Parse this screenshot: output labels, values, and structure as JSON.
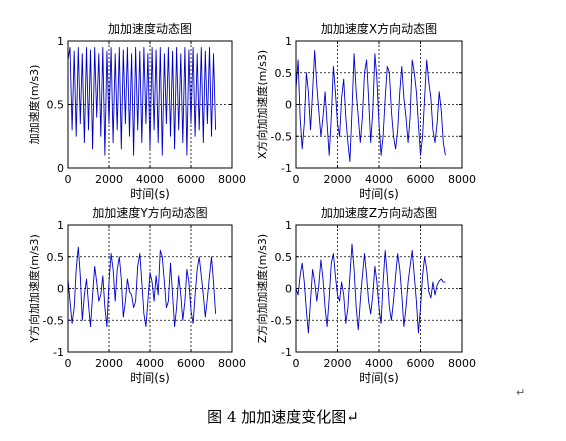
{
  "caption": "图 4  加加速度变化图↵",
  "paragraph_mark": "↵",
  "chart_data": [
    {
      "type": "line",
      "title": "加加速度动态图",
      "xlabel": "时间(s)",
      "ylabel": "加加速度(m/s3)",
      "xlim": [
        0,
        8000
      ],
      "ylim": [
        0,
        1
      ],
      "xticks": [
        0,
        2000,
        4000,
        6000,
        8000
      ],
      "yticks": [
        0,
        0.5,
        1
      ],
      "ytick_labels": [
        "0",
        "0.5",
        "1"
      ],
      "grid": "dotted",
      "series_color": "#0000cc",
      "series": [
        {
          "x": [
            0,
            100,
            200,
            300,
            400,
            500,
            600,
            700,
            800,
            900,
            1000,
            1100,
            1200,
            1300,
            1400,
            1500,
            1600,
            1700,
            1800,
            1900,
            2000,
            2100,
            2200,
            2300,
            2400,
            2500,
            2600,
            2700,
            2800,
            2900,
            3000,
            3100,
            3200,
            3300,
            3400,
            3500,
            3600,
            3700,
            3800,
            3900,
            4000,
            4100,
            4200,
            4300,
            4400,
            4500,
            4600,
            4700,
            4800,
            4900,
            5000,
            5100,
            5200,
            5300,
            5400,
            5500,
            5600,
            5700,
            5800,
            5900,
            6000,
            6100,
            6200,
            6300,
            6400,
            6500,
            6600,
            6700,
            6800,
            6900,
            7000,
            7100,
            7200
          ],
          "y": [
            0.85,
            0.95,
            0.3,
            0.92,
            0.25,
            0.95,
            0.35,
            0.9,
            0.2,
            0.95,
            0.3,
            0.93,
            0.15,
            0.95,
            0.4,
            0.9,
            0.25,
            0.95,
            0.1,
            0.92,
            0.35,
            0.95,
            0.2,
            0.9,
            0.3,
            0.95,
            0.15,
            0.93,
            0.35,
            0.95,
            0.25,
            0.9,
            0.1,
            0.95,
            0.3,
            0.92,
            0.2,
            0.95,
            0.35,
            0.9,
            0.15,
            0.95,
            0.3,
            0.93,
            0.2,
            0.95,
            0.1,
            0.9,
            0.35,
            0.95,
            0.25,
            0.92,
            0.15,
            0.95,
            0.3,
            0.9,
            0.2,
            0.95,
            0.1,
            0.93,
            0.35,
            0.95,
            0.25,
            0.9,
            0.3,
            0.95,
            0.2,
            0.92,
            0.35,
            0.95,
            0.25,
            0.9,
            0.3
          ]
        }
      ]
    },
    {
      "type": "line",
      "title": "加加速度X方向动态图",
      "xlabel": "时间(s)",
      "ylabel": "X方向加加速度(m/s3)",
      "xlim": [
        0,
        8000
      ],
      "ylim": [
        -1,
        1
      ],
      "xticks": [
        0,
        2000,
        4000,
        6000,
        8000
      ],
      "yticks": [
        -1,
        -0.5,
        0,
        0.5,
        1
      ],
      "ytick_labels": [
        "-1",
        "-0.5",
        "0",
        "0.5",
        "1"
      ],
      "grid": "dotted",
      "series_color": "#0000cc",
      "series": [
        {
          "x": [
            0,
            100,
            200,
            300,
            400,
            500,
            600,
            700,
            800,
            900,
            1000,
            1100,
            1200,
            1300,
            1400,
            1500,
            1600,
            1700,
            1800,
            1900,
            2000,
            2100,
            2200,
            2300,
            2400,
            2500,
            2600,
            2700,
            2800,
            2900,
            3000,
            3100,
            3200,
            3300,
            3400,
            3500,
            3600,
            3700,
            3800,
            3900,
            4000,
            4100,
            4200,
            4300,
            4400,
            4500,
            4600,
            4700,
            4800,
            4900,
            5000,
            5100,
            5200,
            5300,
            5400,
            5500,
            5600,
            5700,
            5800,
            5900,
            6000,
            6100,
            6200,
            6300,
            6400,
            6500,
            6600,
            6700,
            6800,
            6900,
            7000,
            7100,
            7200
          ],
          "y": [
            0.25,
            0.7,
            -0.2,
            -0.7,
            -0.3,
            0.5,
            0.2,
            -0.4,
            0.2,
            0.85,
            0.3,
            -0.1,
            -0.5,
            -0.2,
            0.2,
            -0.3,
            -0.8,
            -0.2,
            0.6,
            0.2,
            -0.3,
            -0.5,
            0.1,
            0.4,
            -0.2,
            -0.6,
            -0.9,
            -0.1,
            0.8,
            0.2,
            -0.2,
            -0.6,
            -0.2,
            0.5,
            0.7,
            0.1,
            -0.6,
            -0.1,
            0.8,
            0.4,
            -0.3,
            -0.8,
            -0.5,
            0.1,
            0.6,
            0.5,
            -0.1,
            -0.5,
            -0.7,
            -0.4,
            0.2,
            0.6,
            0.1,
            -0.2,
            -0.6,
            -0.2,
            0.7,
            0.5,
            0.2,
            -0.3,
            -0.8,
            -0.5,
            0.1,
            0.7,
            0.35,
            0.1,
            -0.4,
            -0.6,
            -0.3,
            0.2,
            -0.1,
            -0.6,
            -0.8
          ]
        }
      ]
    },
    {
      "type": "line",
      "title": "加加速度Y方向动态图",
      "xlabel": "时间(s)",
      "ylabel": "Y方向加加速度(m/s3)",
      "xlim": [
        0,
        8000
      ],
      "ylim": [
        -1,
        1
      ],
      "xticks": [
        0,
        2000,
        4000,
        6000,
        8000
      ],
      "yticks": [
        -1,
        -0.5,
        0,
        0.5,
        1
      ],
      "ytick_labels": [
        "-1",
        "-0.5",
        "0",
        "0.5",
        "1"
      ],
      "grid": "dotted",
      "series_color": "#0000cc",
      "series": [
        {
          "x": [
            0,
            100,
            200,
            300,
            400,
            500,
            600,
            700,
            800,
            900,
            1000,
            1100,
            1200,
            1300,
            1400,
            1500,
            1600,
            1700,
            1800,
            1900,
            2000,
            2100,
            2200,
            2300,
            2400,
            2500,
            2600,
            2700,
            2800,
            2900,
            3000,
            3100,
            3200,
            3300,
            3400,
            3500,
            3600,
            3700,
            3800,
            3900,
            4000,
            4100,
            4200,
            4300,
            4400,
            4500,
            4600,
            4700,
            4800,
            4900,
            5000,
            5100,
            5200,
            5300,
            5400,
            5500,
            5600,
            5700,
            5800,
            5900,
            6000,
            6100,
            6200,
            6300,
            6400,
            6500,
            6600,
            6700,
            6800,
            6900,
            7000,
            7100,
            7200
          ],
          "y": [
            0.15,
            -0.2,
            -0.55,
            -0.3,
            0.3,
            0.65,
            0.2,
            -0.5,
            -0.1,
            0.15,
            -0.25,
            -0.6,
            -0.1,
            0.35,
            0.1,
            -0.2,
            -0.1,
            0.2,
            -0.3,
            -0.6,
            0.1,
            0.55,
            0.3,
            -0.2,
            0.3,
            0.5,
            0.15,
            -0.45,
            -0.2,
            0.15,
            -0.05,
            -0.1,
            -0.3,
            -0.2,
            0.35,
            0.55,
            0.1,
            -0.4,
            -0.6,
            -0.2,
            0.25,
            0.1,
            -0.2,
            0.2,
            -0.1,
            0.6,
            0.5,
            0.1,
            -0.3,
            -0.2,
            0.4,
            -0.1,
            -0.6,
            -0.3,
            0.2,
            -0.1,
            -0.5,
            -0.2,
            0.3,
            0.1,
            -0.35,
            -0.55,
            -0.1,
            0.3,
            0.5,
            0.2,
            -0.1,
            -0.45,
            -0.15,
            0.2,
            0.5,
            0.1,
            -0.4
          ]
        }
      ]
    },
    {
      "type": "line",
      "title": "加加速度Z方向动态图",
      "xlabel": "时间(s)",
      "ylabel": "Z方向加加速度(m/s3)",
      "xlim": [
        0,
        8000
      ],
      "ylim": [
        -1,
        1
      ],
      "xticks": [
        0,
        2000,
        4000,
        6000,
        8000
      ],
      "yticks": [
        -1,
        -0.5,
        0,
        0.5,
        1
      ],
      "ytick_labels": [
        "-1",
        "-0.5",
        "0",
        "0.5",
        "1"
      ],
      "grid": "dotted",
      "series_color": "#0000cc",
      "series": [
        {
          "x": [
            0,
            100,
            200,
            300,
            400,
            500,
            600,
            700,
            800,
            900,
            1000,
            1100,
            1200,
            1300,
            1400,
            1500,
            1600,
            1700,
            1800,
            1900,
            2000,
            2100,
            2200,
            2300,
            2400,
            2500,
            2600,
            2700,
            2800,
            2900,
            3000,
            3100,
            3200,
            3300,
            3400,
            3500,
            3600,
            3700,
            3800,
            3900,
            4000,
            4100,
            4200,
            4300,
            4400,
            4500,
            4600,
            4700,
            4800,
            4900,
            5000,
            5100,
            5200,
            5300,
            5400,
            5500,
            5600,
            5700,
            5800,
            5900,
            6000,
            6100,
            6200,
            6300,
            6400,
            6500,
            6600,
            6700,
            6800,
            6900,
            7000,
            7100,
            7200
          ],
          "y": [
            0.0,
            -0.1,
            0.2,
            0.4,
            0.1,
            -0.35,
            -0.7,
            -0.2,
            0.3,
            0.1,
            -0.2,
            0.05,
            0.45,
            0.15,
            -0.3,
            -0.6,
            -0.15,
            0.4,
            0.55,
            0.2,
            -0.1,
            -0.2,
            0.1,
            -0.1,
            -0.55,
            -0.3,
            0.2,
            0.7,
            0.3,
            -0.3,
            -0.65,
            -0.2,
            0.2,
            0.55,
            0.2,
            -0.2,
            -0.4,
            -0.1,
            0.35,
            0.1,
            -0.3,
            -0.55,
            0.1,
            0.6,
            0.2,
            -0.3,
            -0.5,
            -0.2,
            0.2,
            0.55,
            0.3,
            -0.1,
            -0.6,
            -0.3,
            0.1,
            0.35,
            0.6,
            0.2,
            -0.2,
            -0.7,
            -0.3,
            0.2,
            0.5,
            0.3,
            -0.05,
            -0.15,
            0.1,
            -0.1,
            0.05,
            0.12,
            0.15,
            0.1,
            0.1
          ]
        }
      ]
    }
  ]
}
